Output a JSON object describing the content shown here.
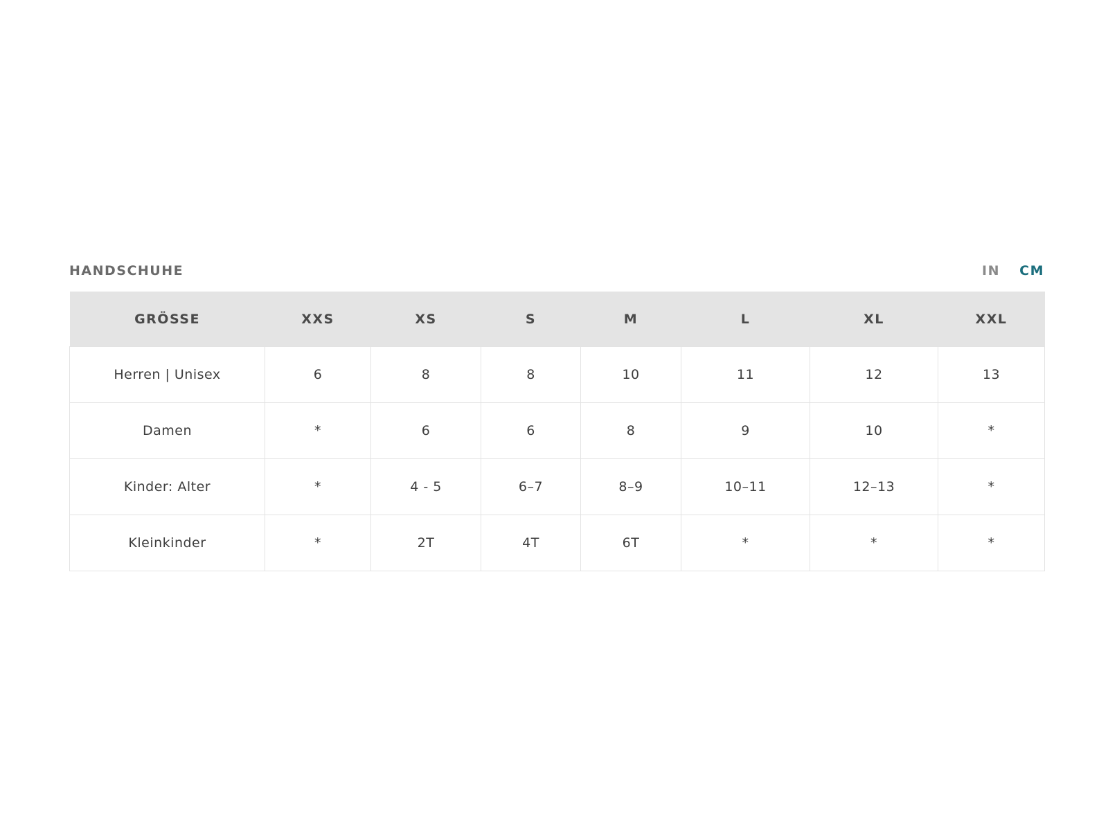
{
  "title": "HANDSCHUHE",
  "units": {
    "options": [
      "IN",
      "CM"
    ],
    "selected": "CM",
    "active_color": "#1b6e7d",
    "inactive_color": "#8a8a8a"
  },
  "table": {
    "headers": [
      "GRÖSSE",
      "XXS",
      "XS",
      "S",
      "M",
      "L",
      "XL",
      "XXL"
    ],
    "rows": [
      [
        "Herren | Unisex",
        "6",
        "8",
        "8",
        "10",
        "11",
        "12",
        "13"
      ],
      [
        "Damen",
        "*",
        "6",
        "6",
        "8",
        "9",
        "10",
        "*"
      ],
      [
        "Kinder: Alter",
        "*",
        "4 - 5",
        "6–7",
        "8–9",
        "10–11",
        "12–13",
        "*"
      ],
      [
        "Kleinkinder",
        "*",
        "2T",
        "4T",
        "6T",
        "*",
        "*",
        "*"
      ]
    ]
  }
}
